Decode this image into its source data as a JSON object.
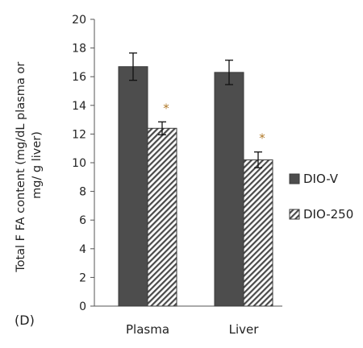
{
  "chart_data": {
    "type": "bar",
    "panel_label": "(D)",
    "title": "",
    "xlabel": "",
    "ylabel_lines": [
      "Total F FA content (mg/dL plasma or",
      "mg/ g liver)"
    ],
    "categories": [
      "Plasma",
      "Liver"
    ],
    "ylim": [
      0,
      20
    ],
    "yticks": [
      "0",
      "2",
      "4",
      "6",
      "8",
      "10",
      "12",
      "14",
      "16",
      "18",
      "20"
    ],
    "grid": false,
    "legend_position": "right",
    "series": [
      {
        "name": "DIO-V",
        "values": [
          16.7,
          16.3
        ],
        "errors": [
          0.95,
          0.85
        ],
        "fill": "#4d4d4d",
        "pattern": "solid",
        "significant": [
          false,
          false
        ]
      },
      {
        "name": "DIO-250",
        "values": [
          12.4,
          10.2
        ],
        "errors": [
          0.45,
          0.55
        ],
        "fill": "#4d4d4d",
        "pattern": "hatch",
        "significant": [
          true,
          true
        ]
      }
    ],
    "significance_marker": "*"
  }
}
